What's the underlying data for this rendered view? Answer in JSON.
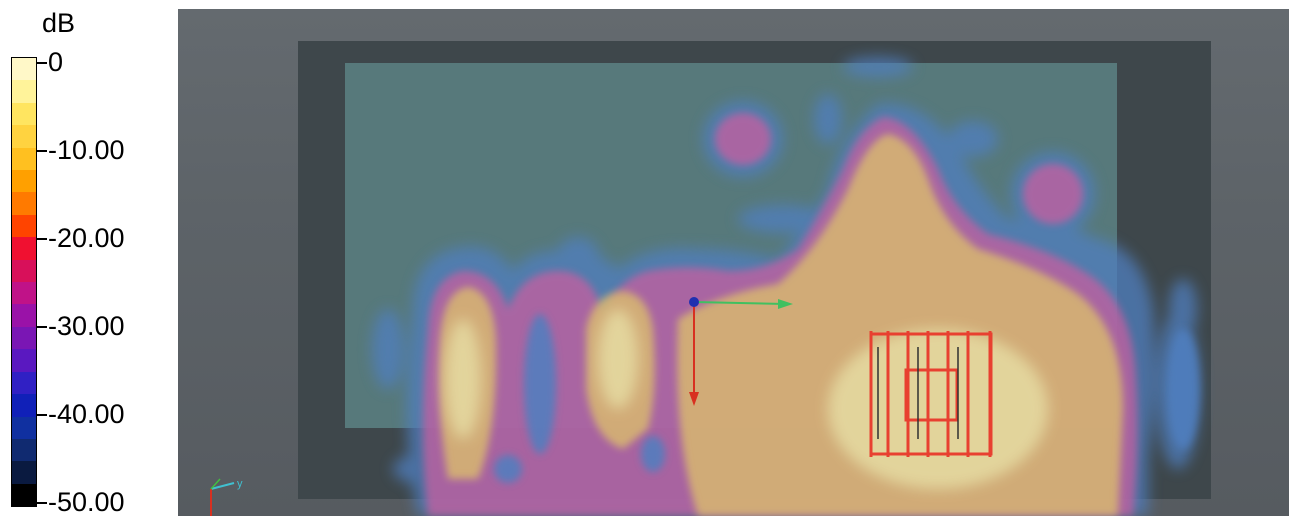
{
  "legend": {
    "unit": "dB",
    "ticks": [
      "0",
      "-10.00",
      "-20.00",
      "-30.00",
      "-40.00",
      "-50.00"
    ],
    "colors": [
      "#fff8c8",
      "#fff39a",
      "#ffe560",
      "#ffd340",
      "#ffc020",
      "#ffa000",
      "#ff7a00",
      "#ff4400",
      "#f01030",
      "#d8105a",
      "#c01288",
      "#9a12a8",
      "#7a16b4",
      "#5a18c0",
      "#3020c4",
      "#1020b8",
      "#1030a0",
      "#102a70",
      "#0a1a40",
      "#000000"
    ]
  },
  "viewport": {
    "axis_label": "y",
    "colors": {
      "background": "#5f6569",
      "board": "#3e474b",
      "screen": "#57797b"
    }
  }
}
